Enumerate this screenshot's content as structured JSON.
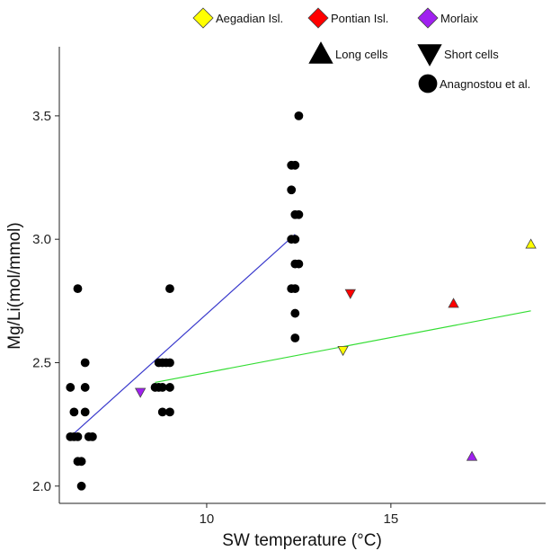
{
  "chart_data": {
    "type": "scatter",
    "xlabel": "SW temperature (°C)",
    "ylabel": "Mg/Li(mol/mmol)",
    "xlim": [
      6.0,
      19.2
    ],
    "ylim": [
      1.93,
      3.78
    ],
    "x_ticks": [
      10,
      15
    ],
    "y_ticks": [
      2.0,
      2.5,
      3.0,
      3.5
    ],
    "x_tick_labels": [
      "10",
      "15"
    ],
    "y_tick_labels": [
      "2.0",
      "2.5",
      "3.0",
      "3.5"
    ],
    "grid": false,
    "legend_position": "top-right",
    "legend": [
      {
        "label": "Aegadian Isl.",
        "shape": "diamond",
        "color": "#ffff00"
      },
      {
        "label": "Pontian Isl.",
        "shape": "diamond",
        "color": "#ff0000"
      },
      {
        "label": "Morlaix",
        "shape": "diamond",
        "color": "#a020f0"
      },
      {
        "label": "Long cells",
        "shape": "triangle-up",
        "color": "#000000"
      },
      {
        "label": "Short cells",
        "shape": "triangle-down",
        "color": "#000000"
      },
      {
        "label": "Anagnostou et al.",
        "shape": "circle",
        "color": "#000000"
      }
    ],
    "series": [
      {
        "name": "Anagnostou et al.",
        "shape": "circle",
        "color": "#000000",
        "points": [
          [
            6.3,
            2.4
          ],
          [
            6.4,
            2.3
          ],
          [
            6.4,
            2.2
          ],
          [
            6.5,
            2.2
          ],
          [
            6.5,
            2.1
          ],
          [
            6.6,
            2.1
          ],
          [
            6.6,
            2.0
          ],
          [
            6.5,
            2.8
          ],
          [
            6.7,
            2.5
          ],
          [
            6.7,
            2.4
          ],
          [
            6.7,
            2.3
          ],
          [
            6.8,
            2.2
          ],
          [
            6.9,
            2.2
          ],
          [
            6.3,
            2.2
          ],
          [
            8.6,
            2.4
          ],
          [
            8.7,
            2.4
          ],
          [
            8.8,
            2.4
          ],
          [
            8.7,
            2.5
          ],
          [
            8.8,
            2.5
          ],
          [
            8.9,
            2.5
          ],
          [
            8.8,
            2.3
          ],
          [
            9.0,
            2.3
          ],
          [
            9.0,
            2.4
          ],
          [
            9.0,
            2.5
          ],
          [
            9.0,
            2.8
          ],
          [
            12.3,
            3.3
          ],
          [
            12.4,
            3.3
          ],
          [
            12.3,
            3.2
          ],
          [
            12.3,
            3.0
          ],
          [
            12.4,
            3.0
          ],
          [
            12.4,
            3.1
          ],
          [
            12.5,
            3.1
          ],
          [
            12.5,
            3.5
          ],
          [
            12.4,
            2.9
          ],
          [
            12.5,
            2.9
          ],
          [
            12.4,
            2.7
          ],
          [
            12.4,
            2.6
          ],
          [
            12.3,
            2.8
          ],
          [
            12.4,
            2.8
          ]
        ]
      },
      {
        "name": "Aegadian Isl. – Long cells",
        "shape": "triangle-up",
        "color": "#ffff00",
        "points": [
          [
            18.8,
            2.98
          ]
        ]
      },
      {
        "name": "Aegadian Isl. – Short cells",
        "shape": "triangle-down",
        "color": "#ffff00",
        "points": [
          [
            13.7,
            2.55
          ]
        ]
      },
      {
        "name": "Pontian Isl. – Long cells",
        "shape": "triangle-up",
        "color": "#ff0000",
        "points": [
          [
            16.7,
            2.74
          ]
        ]
      },
      {
        "name": "Pontian Isl. – Short cells",
        "shape": "triangle-down",
        "color": "#ff0000",
        "points": [
          [
            13.9,
            2.78
          ]
        ]
      },
      {
        "name": "Morlaix – Long cells",
        "shape": "triangle-up",
        "color": "#a020f0",
        "points": [
          [
            17.2,
            2.12
          ]
        ]
      },
      {
        "name": "Morlaix – Short cells",
        "shape": "triangle-down",
        "color": "#a020f0",
        "points": [
          [
            8.2,
            2.38
          ]
        ]
      }
    ],
    "fit_lines": [
      {
        "color": "#3a3acc",
        "from": [
          6.3,
          2.2
        ],
        "to": [
          12.4,
          3.02
        ]
      },
      {
        "color": "#33dd33",
        "from": [
          8.6,
          2.42
        ],
        "to": [
          18.8,
          2.71
        ]
      }
    ]
  }
}
